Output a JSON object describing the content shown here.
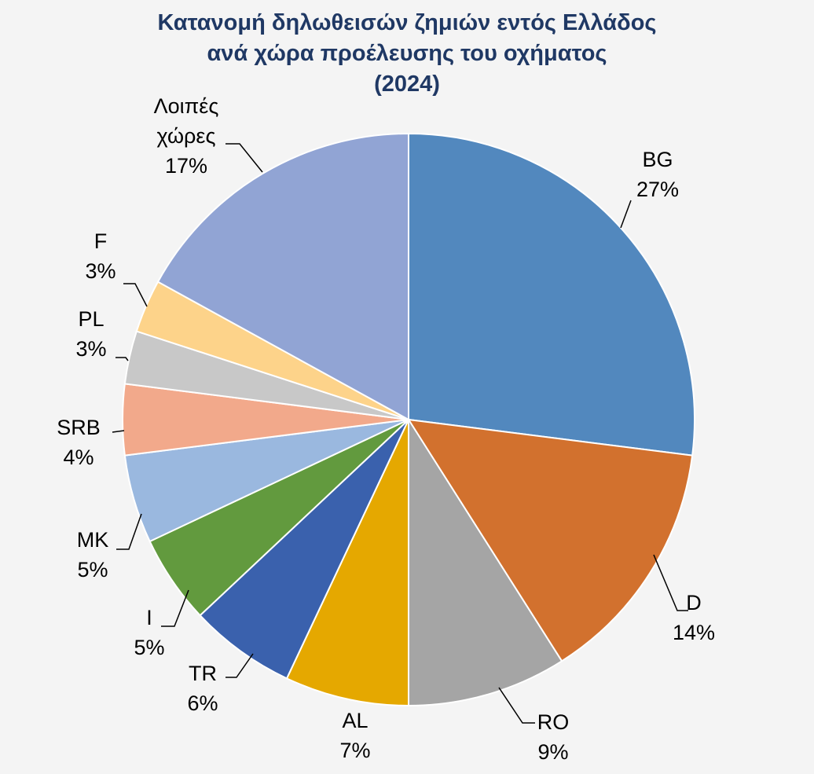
{
  "chart_data": {
    "type": "pie",
    "title": [
      "Κατανομή δηλωθεισών ζημιών εντός Ελλάδος",
      "ανά χώρα προέλευσης του οχήματος",
      "(2024)"
    ],
    "start_angle": "12 o'clock",
    "direction": "clockwise",
    "slices": [
      {
        "name": "BG",
        "label_lines": [
          "BG"
        ],
        "value": 27,
        "label_value": "27%",
        "color": "#5288be"
      },
      {
        "name": "D",
        "label_lines": [
          "D"
        ],
        "value": 14,
        "label_value": "14%",
        "color": "#d2712e"
      },
      {
        "name": "RO",
        "label_lines": [
          "RO"
        ],
        "value": 9,
        "label_value": "9%",
        "color": "#a5a5a5"
      },
      {
        "name": "AL",
        "label_lines": [
          "AL"
        ],
        "value": 7,
        "label_value": "7%",
        "color": "#e5a800"
      },
      {
        "name": "TR",
        "label_lines": [
          "TR"
        ],
        "value": 6,
        "label_value": "6%",
        "color": "#3a61ad"
      },
      {
        "name": "I",
        "label_lines": [
          "I"
        ],
        "value": 5,
        "label_value": "5%",
        "color": "#629a3e"
      },
      {
        "name": "MK",
        "label_lines": [
          "MK"
        ],
        "value": 5,
        "label_value": "5%",
        "color": "#9ab8df"
      },
      {
        "name": "SRB",
        "label_lines": [
          "SRB"
        ],
        "value": 4,
        "label_value": "4%",
        "color": "#f2a98b"
      },
      {
        "name": "PL",
        "label_lines": [
          "PL"
        ],
        "value": 3,
        "label_value": "3%",
        "color": "#c8c8c8"
      },
      {
        "name": "F",
        "label_lines": [
          "F"
        ],
        "value": 3,
        "label_value": "3%",
        "color": "#fdd38a"
      },
      {
        "name": "Λοιπές χώρες",
        "label_lines": [
          "Λοιπές",
          "χώρες"
        ],
        "value": 17,
        "label_value": "17%",
        "color": "#91a4d4"
      }
    ]
  }
}
